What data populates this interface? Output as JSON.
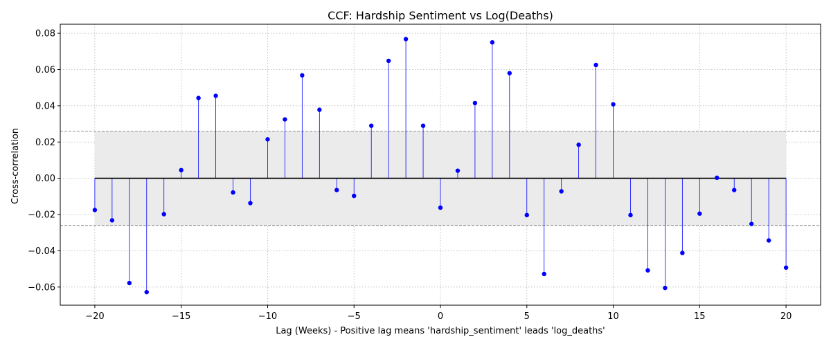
{
  "chart_data": {
    "type": "stem",
    "title": "CCF: Hardship Sentiment vs Log(Deaths)",
    "xlabel": "Lag (Weeks) - Positive lag means 'hardship_sentiment' leads 'log_deaths'",
    "ylabel": "Cross-correlation",
    "xlim": [
      -22,
      22
    ],
    "ylim": [
      -0.07,
      0.085
    ],
    "xticks": [
      -20,
      -15,
      -10,
      -5,
      0,
      5,
      10,
      15,
      20
    ],
    "xtick_labels": [
      "−20",
      "−15",
      "−10",
      "−5",
      "0",
      "5",
      "10",
      "15",
      "20"
    ],
    "yticks": [
      -0.06,
      -0.04,
      -0.02,
      0.0,
      0.02,
      0.04,
      0.06,
      0.08
    ],
    "ytick_labels": [
      "−0.06",
      "−0.04",
      "−0.02",
      "0.00",
      "0.02",
      "0.04",
      "0.06",
      "0.08"
    ],
    "confidence_band": 0.026,
    "grid": true,
    "colors": {
      "stem": "#0000ff",
      "marker": "#0000ff",
      "baseline": "#000000",
      "band_fill": "#ebebeb",
      "band_line": "#808080"
    },
    "lags": [
      -20,
      -19,
      -18,
      -17,
      -16,
      -15,
      -14,
      -13,
      -12,
      -11,
      -10,
      -9,
      -8,
      -7,
      -6,
      -5,
      -4,
      -3,
      -2,
      -1,
      0,
      1,
      2,
      3,
      4,
      5,
      6,
      7,
      8,
      9,
      10,
      11,
      12,
      13,
      14,
      15,
      16,
      17,
      18,
      19,
      20
    ],
    "values": [
      -0.0175,
      -0.0232,
      -0.0578,
      -0.0628,
      -0.0198,
      0.0045,
      0.0443,
      0.0455,
      -0.0078,
      -0.0137,
      0.0215,
      0.0325,
      0.0568,
      0.0378,
      -0.0065,
      -0.0097,
      0.029,
      0.0648,
      0.0768,
      0.029,
      -0.0162,
      0.0042,
      0.0415,
      0.075,
      0.058,
      -0.0203,
      -0.0528,
      -0.0072,
      0.0185,
      0.0625,
      0.0408,
      -0.0203,
      -0.0508,
      -0.0605,
      -0.0412,
      -0.0195,
      0.0003,
      -0.0065,
      -0.0252,
      -0.0343,
      -0.0493
    ]
  }
}
